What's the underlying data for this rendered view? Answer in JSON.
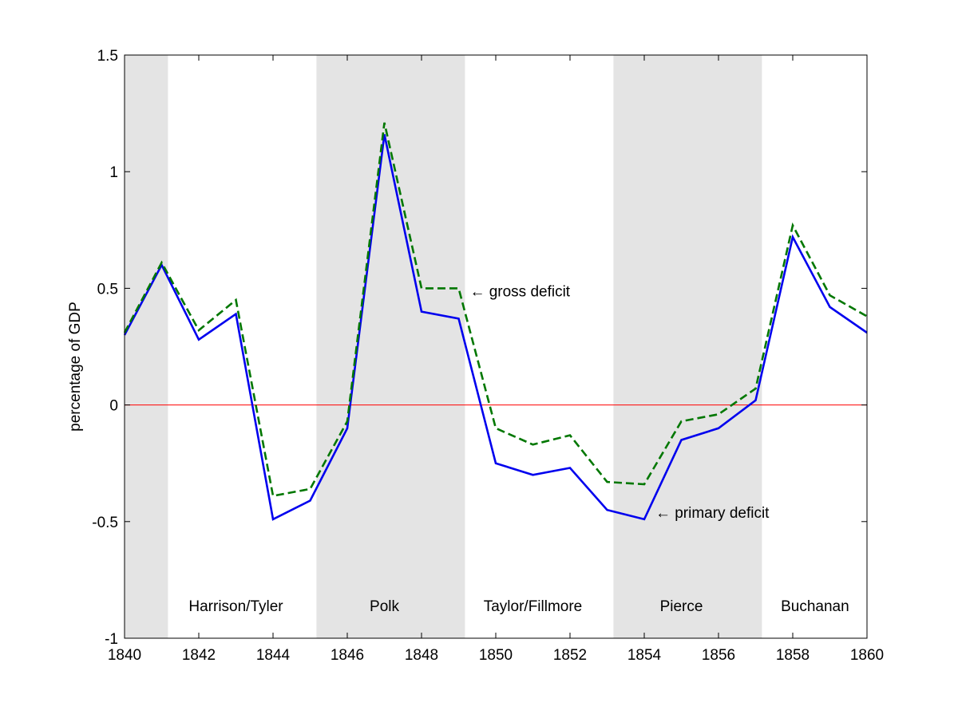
{
  "chart_data": {
    "type": "line",
    "title": "",
    "xlabel": "",
    "ylabel": "percentage of GDP",
    "xlim": [
      1840,
      1860
    ],
    "ylim": [
      -1,
      1.5
    ],
    "xticks": [
      1840,
      1842,
      1844,
      1846,
      1848,
      1850,
      1852,
      1854,
      1856,
      1858,
      1860
    ],
    "yticks": [
      -1,
      -0.5,
      0,
      0.5,
      1,
      1.5
    ],
    "x": [
      1840,
      1841,
      1842,
      1843,
      1844,
      1845,
      1846,
      1847,
      1848,
      1849,
      1850,
      1851,
      1852,
      1853,
      1854,
      1855,
      1856,
      1857,
      1858,
      1859,
      1860
    ],
    "series": [
      {
        "name": "primary deficit",
        "color": "#0000ee",
        "style": "solid",
        "values": [
          0.3,
          0.6,
          0.28,
          0.39,
          -0.49,
          -0.41,
          -0.1,
          1.16,
          0.4,
          0.37,
          -0.25,
          -0.3,
          -0.27,
          -0.45,
          -0.49,
          -0.15,
          -0.1,
          0.02,
          0.72,
          0.42,
          0.31
        ]
      },
      {
        "name": "gross deficit",
        "color": "#007700",
        "style": "dashed",
        "values": [
          0.31,
          0.61,
          0.32,
          0.45,
          -0.39,
          -0.36,
          -0.07,
          1.21,
          0.5,
          0.5,
          -0.1,
          -0.17,
          -0.13,
          -0.33,
          -0.34,
          -0.07,
          -0.04,
          0.07,
          0.77,
          0.47,
          0.38
        ]
      }
    ],
    "reference_line": {
      "y": 0,
      "color": "#ff0000"
    },
    "administrations": [
      {
        "label": "",
        "start": 1840,
        "end": 1841.17,
        "shaded": true
      },
      {
        "label": "Harrison/Tyler",
        "start": 1841.17,
        "end": 1845.17,
        "shaded": false,
        "label_x": 1843
      },
      {
        "label": "Polk",
        "start": 1845.17,
        "end": 1849.17,
        "shaded": true,
        "label_x": 1847
      },
      {
        "label": "Taylor/Fillmore",
        "start": 1849.17,
        "end": 1853.17,
        "shaded": false,
        "label_x": 1851
      },
      {
        "label": "Pierce",
        "start": 1853.17,
        "end": 1857.17,
        "shaded": true,
        "label_x": 1855
      },
      {
        "label": "Buchanan",
        "start": 1857.17,
        "end": 1860,
        "shaded": false,
        "label_x": 1858.6
      }
    ],
    "admin_label_y": -0.86,
    "shade_color": "#e4e4e4",
    "annotations": [
      {
        "text": "← gross deficit",
        "x": 1849.3,
        "y": 0.49
      },
      {
        "text": "← primary deficit",
        "x": 1854.3,
        "y": -0.46
      }
    ],
    "grid": false,
    "legend": "none"
  }
}
